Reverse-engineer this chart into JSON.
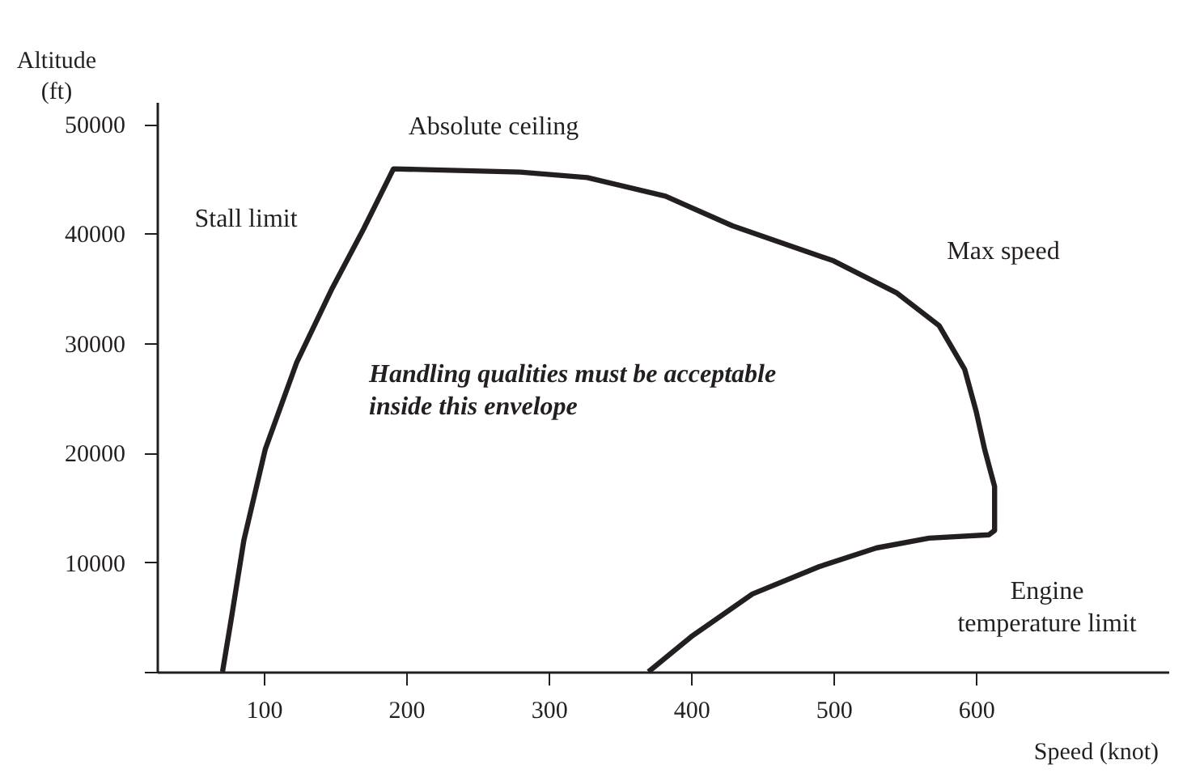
{
  "chart_data": {
    "type": "line",
    "xlabel": "Speed (knot)",
    "ylabel": "Altitude\n(ft)",
    "xlim": [
      25,
      735
    ],
    "ylim": [
      0,
      52000
    ],
    "xticks": [
      100,
      200,
      300,
      400,
      500,
      600
    ],
    "yticks": [
      {
        "value": 0,
        "label": null
      },
      10000,
      20000,
      30000,
      40000,
      50000
    ],
    "grid": false,
    "marker": "none",
    "line_style": "solid",
    "series": [
      {
        "color": "#231f20",
        "x": [
          71,
          77,
          86,
          101,
          123,
          148,
          170,
          191,
          280,
          327,
          382,
          429,
          500,
          544,
          574,
          592,
          600,
          606,
          613,
          613,
          609,
          567,
          530,
          490,
          443,
          400,
          370
        ],
        "values": [
          0,
          4700,
          12000,
          20300,
          28200,
          35000,
          40400,
          45900,
          45600,
          45100,
          43400,
          40700,
          37500,
          34600,
          31600,
          27600,
          23800,
          20300,
          16900,
          12900,
          12500,
          12200,
          11300,
          9600,
          7100,
          3200,
          0
        ]
      }
    ],
    "annotations": [
      "Stall limit",
      "Absolute ceiling",
      "Max speed",
      "Engine\ntemperature limit",
      "Handling qualities must be acceptable\ninside this envelope"
    ]
  }
}
